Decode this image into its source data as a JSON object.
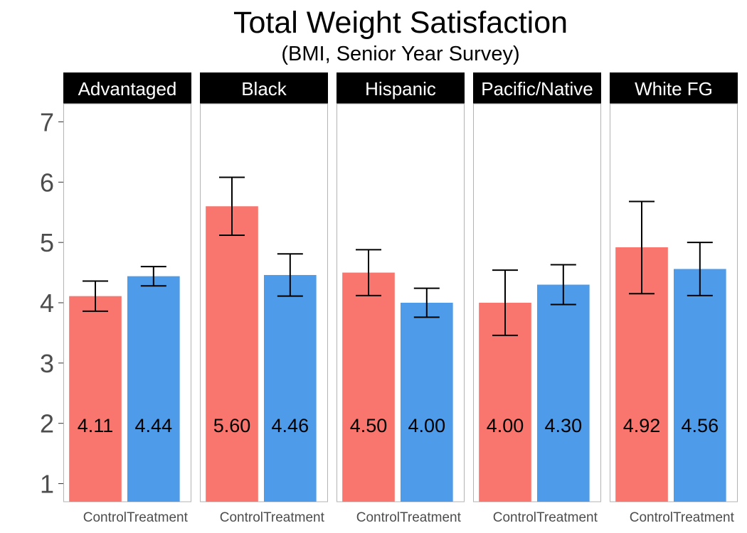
{
  "chart_data": {
    "type": "bar",
    "title": "Total Weight Satisfaction",
    "subtitle": "(BMI, Senior Year Survey)",
    "xlabel": "",
    "ylabel": "",
    "ylim": [
      0.7,
      7.3
    ],
    "y_ticks": [
      1,
      2,
      3,
      4,
      5,
      6,
      7
    ],
    "grid": false,
    "legend": "none",
    "categories": [
      "Control",
      "Treatment"
    ],
    "colors": {
      "Control": "#F8766D",
      "Treatment": "#4E9BE9"
    },
    "facets": [
      {
        "label": "Advantaged",
        "bars": [
          {
            "group": "Control",
            "value": 4.11,
            "label": "4.11",
            "error_low": 3.86,
            "error_high": 4.36
          },
          {
            "group": "Treatment",
            "value": 4.44,
            "label": "4.44",
            "error_low": 4.28,
            "error_high": 4.6
          }
        ]
      },
      {
        "label": "Black",
        "bars": [
          {
            "group": "Control",
            "value": 5.6,
            "label": "5.60",
            "error_low": 5.12,
            "error_high": 6.08
          },
          {
            "group": "Treatment",
            "value": 4.46,
            "label": "4.46",
            "error_low": 4.11,
            "error_high": 4.81
          }
        ]
      },
      {
        "label": "Hispanic",
        "bars": [
          {
            "group": "Control",
            "value": 4.5,
            "label": "4.50",
            "error_low": 4.12,
            "error_high": 4.88
          },
          {
            "group": "Treatment",
            "value": 4.0,
            "label": "4.00",
            "error_low": 3.76,
            "error_high": 4.24
          }
        ]
      },
      {
        "label": "Pacific/Native",
        "bars": [
          {
            "group": "Control",
            "value": 4.0,
            "label": "4.00",
            "error_low": 3.46,
            "error_high": 4.54
          },
          {
            "group": "Treatment",
            "value": 4.3,
            "label": "4.30",
            "error_low": 3.97,
            "error_high": 4.63
          }
        ]
      },
      {
        "label": "White FG",
        "bars": [
          {
            "group": "Control",
            "value": 4.92,
            "label": "4.92",
            "error_low": 4.15,
            "error_high": 5.68
          },
          {
            "group": "Treatment",
            "value": 4.56,
            "label": "4.56",
            "error_low": 4.12,
            "error_high": 5.0
          }
        ]
      }
    ]
  }
}
